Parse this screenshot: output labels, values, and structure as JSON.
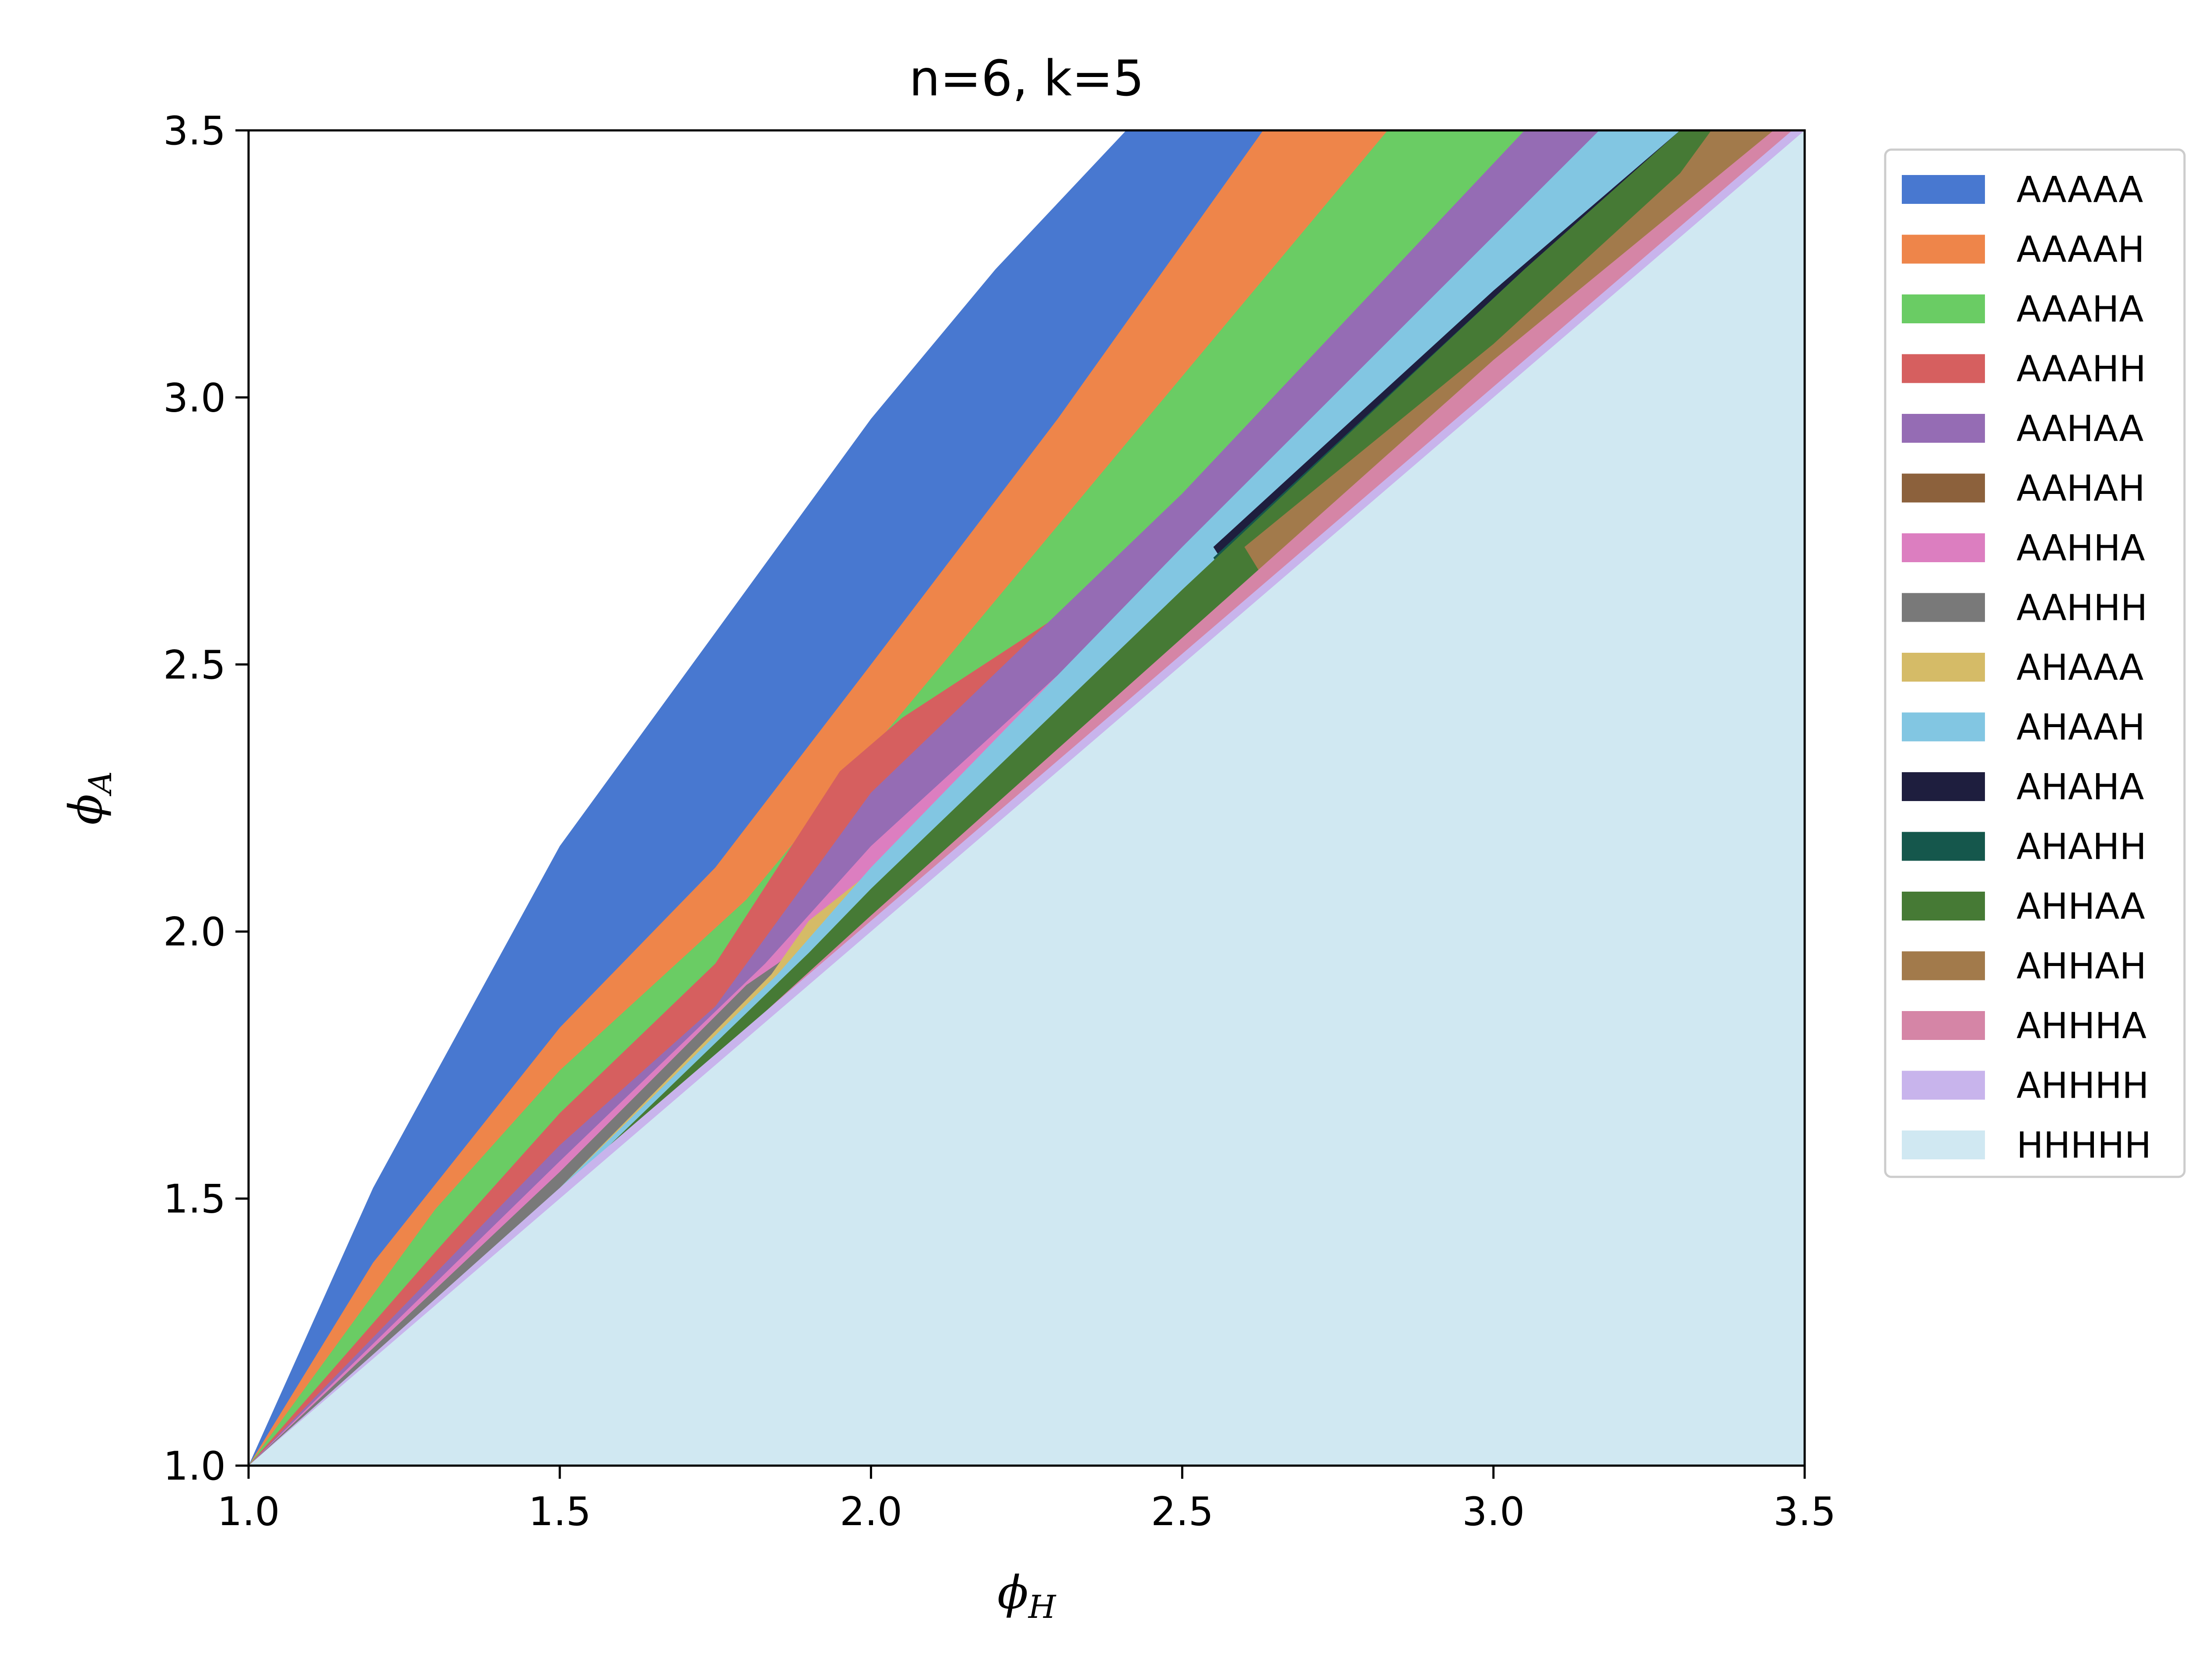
{
  "chart_data": {
    "type": "area",
    "title": "n=6, k=5",
    "xlabel": {
      "base": "ϕ",
      "sub": "H"
    },
    "ylabel": {
      "base": "ϕ",
      "sub": "A"
    },
    "xlim": [
      1.0,
      3.5
    ],
    "ylim": [
      1.0,
      3.5
    ],
    "xticks": [
      "1.0",
      "1.5",
      "2.0",
      "2.5",
      "3.0",
      "3.5"
    ],
    "yticks": [
      "1.0",
      "1.5",
      "2.0",
      "2.5",
      "3.0",
      "3.5"
    ],
    "grid": false,
    "legend_position": "outside-right",
    "regions": [
      {
        "name": "AAAAA",
        "color": "#4878d0",
        "boundary": [
          [
            1.0,
            1.0
          ],
          [
            1.2,
            1.52
          ],
          [
            1.5,
            2.16
          ],
          [
            1.75,
            2.56
          ],
          [
            2.0,
            2.96
          ],
          [
            2.2,
            3.24
          ],
          [
            2.41,
            3.5
          ]
        ]
      },
      {
        "name": "AAAAH",
        "color": "#ee854a",
        "boundary": [
          [
            1.0,
            1.0
          ],
          [
            1.2,
            1.38
          ],
          [
            1.5,
            1.82
          ],
          [
            1.75,
            2.12
          ],
          [
            2.0,
            2.5
          ],
          [
            2.3,
            2.96
          ],
          [
            2.63,
            3.5
          ]
        ]
      },
      {
        "name": "AAAHA",
        "color": "#6acc64",
        "boundary": [
          [
            1.0,
            1.0
          ],
          [
            1.3,
            1.48
          ],
          [
            1.5,
            1.74
          ],
          [
            1.8,
            2.06
          ],
          [
            2.0,
            2.34
          ],
          [
            2.4,
            2.9
          ],
          [
            2.83,
            3.5
          ]
        ]
      },
      {
        "name": "AAAHH",
        "color": "#d65f5f",
        "boundary": [
          [
            1.0,
            1.0
          ],
          [
            1.3,
            1.4
          ],
          [
            1.5,
            1.66
          ],
          [
            1.75,
            1.94
          ],
          [
            1.95,
            2.3
          ],
          [
            2.05,
            2.4
          ]
        ]
      },
      {
        "name": "AAHAA",
        "color": "#956cb4",
        "boundary": [
          [
            1.0,
            1.0
          ],
          [
            1.3,
            1.36
          ],
          [
            1.5,
            1.6
          ],
          [
            1.75,
            1.86
          ],
          [
            2.0,
            2.26
          ],
          [
            2.5,
            2.82
          ],
          [
            3.05,
            3.5
          ]
        ]
      },
      {
        "name": "AAHHA",
        "color": "#dc7ec0",
        "boundary": [
          [
            1.0,
            1.0
          ],
          [
            1.5,
            1.57
          ],
          [
            1.83,
            1.94
          ],
          [
            2.0,
            2.16
          ],
          [
            2.3,
            2.48
          ],
          [
            2.55,
            2.76
          ]
        ]
      },
      {
        "name": "AAHHH",
        "color": "#797979",
        "boundary": [
          [
            1.0,
            1.0
          ],
          [
            1.5,
            1.55
          ],
          [
            1.8,
            1.9
          ],
          [
            1.85,
            1.94
          ]
        ]
      },
      {
        "name": "AHAAA",
        "color": "#d5bb67",
        "boundary": [
          [
            1.0,
            1.0
          ],
          [
            1.5,
            1.52
          ],
          [
            1.84,
            1.92
          ],
          [
            1.9,
            2.02
          ]
        ]
      },
      {
        "name": "AHAAH",
        "color": "#82c6e2",
        "boundary": [
          [
            1.0,
            1.0
          ],
          [
            1.5,
            1.52
          ],
          [
            1.85,
            1.92
          ],
          [
            2.0,
            2.12
          ],
          [
            2.5,
            2.72
          ],
          [
            3.17,
            3.5
          ]
        ]
      },
      {
        "name": "AHAHA",
        "color": "#1e1e3e",
        "boundary": [
          [
            2.55,
            2.72
          ],
          [
            3.0,
            3.2
          ],
          [
            3.3,
            3.5
          ]
        ]
      },
      {
        "name": "AHAHH",
        "color": "#15574c",
        "boundary": [
          [
            2.55,
            2.7
          ],
          [
            3.05,
            3.24
          ],
          [
            3.3,
            3.5
          ]
        ]
      },
      {
        "name": "AHHAA",
        "color": "#467a35",
        "boundary": [
          [
            1.0,
            1.0
          ],
          [
            1.5,
            1.51
          ],
          [
            1.9,
            1.96
          ],
          [
            2.0,
            2.08
          ],
          [
            2.5,
            2.64
          ],
          [
            3.05,
            3.24
          ],
          [
            3.3,
            3.5
          ]
        ]
      },
      {
        "name": "AHHAH",
        "color": "#a27a4b",
        "boundary": [
          [
            2.6,
            2.72
          ],
          [
            3.0,
            3.1
          ],
          [
            3.3,
            3.42
          ],
          [
            3.35,
            3.5
          ]
        ]
      },
      {
        "name": "AHHHA",
        "color": "#d585a6",
        "boundary": [
          [
            1.0,
            1.0
          ],
          [
            1.5,
            1.5
          ],
          [
            2.0,
            2.03
          ],
          [
            2.5,
            2.55
          ],
          [
            3.0,
            3.07
          ],
          [
            3.45,
            3.5
          ]
        ]
      },
      {
        "name": "AHHHH",
        "color": "#c8b4ec",
        "boundary": [
          [
            1.0,
            1.0
          ],
          [
            1.5,
            1.52
          ],
          [
            2.0,
            2.02
          ],
          [
            3.0,
            3.02
          ],
          [
            3.48,
            3.5
          ]
        ]
      },
      {
        "name": "HHHHH",
        "color": "#d0e8f2",
        "boundary": [
          [
            1.0,
            1.0
          ],
          [
            3.5,
            3.5
          ]
        ]
      }
    ],
    "legend": [
      "AAAAA",
      "AAAAH",
      "AAAHA",
      "AAAHH",
      "AAHAA",
      "AAHAH",
      "AAHHA",
      "AAHHH",
      "AHAAA",
      "AHAAH",
      "AHAHA",
      "AHAHH",
      "AHHAA",
      "AHHAH",
      "AHHHA",
      "AHHHH",
      "HHHHH"
    ],
    "legend_colors": [
      "#4878d0",
      "#ee854a",
      "#6acc64",
      "#d65f5f",
      "#956cb4",
      "#8c613c",
      "#dc7ec0",
      "#797979",
      "#d5bb67",
      "#82c6e2",
      "#1e1e3e",
      "#15574c",
      "#467a35",
      "#a27a4b",
      "#d585a6",
      "#c8b4ec",
      "#d0e8f2"
    ]
  }
}
